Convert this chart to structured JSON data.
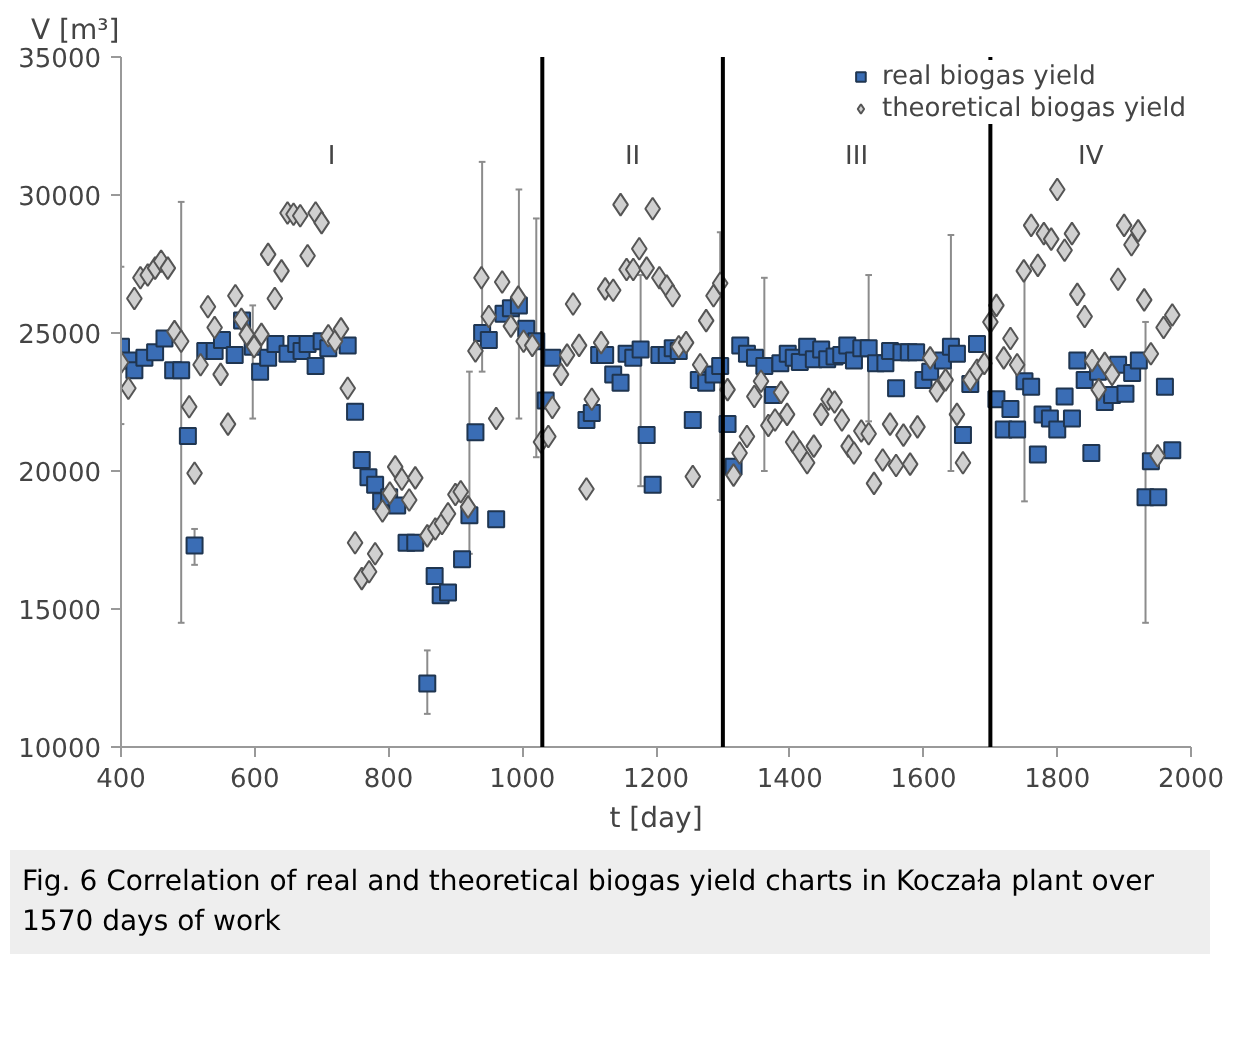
{
  "chart_data": {
    "type": "scatter",
    "xlabel": "t [day]",
    "ylabel": "V [m³]",
    "xlim": [
      400,
      2000
    ],
    "ylim": [
      10000,
      35000
    ],
    "xticks": [
      400,
      600,
      800,
      1000,
      1200,
      1400,
      1600,
      1800,
      2000
    ],
    "yticks": [
      10000,
      15000,
      20000,
      25000,
      30000,
      35000
    ],
    "grid": false,
    "legend": "top right",
    "ref_lines": [
      {
        "axis": "x",
        "value": 1030,
        "color": "#000000"
      },
      {
        "axis": "x",
        "value": 1300,
        "color": "#000000"
      },
      {
        "axis": "x",
        "value": 1700,
        "color": "#000000"
      }
    ],
    "annotations": [
      "I",
      "II",
      "III",
      "IV",
      "Fig. 6  Correlation of real and theoretical biogas yield charts in Koczała plant over 1570 days of work"
    ],
    "series": [
      {
        "name": "real biogas yield",
        "color": "#3a6db5",
        "marker": "square",
        "x": [
          400,
          411,
          420,
          435,
          451,
          465,
          478,
          490,
          500,
          510,
          526,
          540,
          551,
          570,
          581,
          597,
          608,
          620,
          631,
          649,
          662,
          670,
          679,
          691,
          700,
          710,
          739,
          750,
          760,
          770,
          780,
          789,
          801,
          813,
          827,
          840,
          858,
          869,
          878,
          889,
          910,
          921,
          930,
          940,
          950,
          961,
          972,
          983,
          995,
          1006,
          1021,
          1035,
          1045,
          1096,
          1104,
          1115,
          1124,
          1136,
          1147,
          1156,
          1166,
          1177,
          1186,
          1195,
          1205,
          1216,
          1225,
          1234,
          1255,
          1264,
          1275,
          1286,
          1296,
          1307,
          1316,
          1326,
          1336,
          1348,
          1362,
          1375,
          1386,
          1397,
          1406,
          1415,
          1426,
          1436,
          1447,
          1456,
          1467,
          1477,
          1486,
          1496,
          1507,
          1518,
          1529,
          1543,
          1550,
          1559,
          1567,
          1578,
          1589,
          1600,
          1610,
          1629,
          1641,
          1650,
          1659,
          1670,
          1680,
          1709,
          1720,
          1730,
          1740,
          1751,
          1761,
          1771,
          1778,
          1789,
          1800,
          1811,
          1822,
          1830,
          1841,
          1851,
          1861,
          1871,
          1882,
          1891,
          1902,
          1912,
          1922,
          1932,
          1940,
          1951,
          1961,
          1972
        ],
        "values": [
          24500,
          24000,
          23650,
          24100,
          24300,
          24800,
          23650,
          23650,
          21270,
          17300,
          24350,
          24350,
          24750,
          24200,
          25450,
          24500,
          23600,
          24100,
          24600,
          24250,
          24600,
          24350,
          24600,
          23800,
          24700,
          24450,
          24550,
          22150,
          20400,
          19770,
          19500,
          18900,
          19050,
          18750,
          17400,
          17400,
          12300,
          16200,
          15500,
          15600,
          16800,
          18400,
          21400,
          25000,
          24750,
          18250,
          25700,
          25900,
          26000,
          25150,
          24700,
          22550,
          24100,
          21850,
          22100,
          24200,
          24200,
          23500,
          23200,
          24250,
          24100,
          24400,
          21300,
          19500,
          24200,
          24200,
          24450,
          24350,
          21850,
          23300,
          23200,
          23500,
          23800,
          21700,
          20150,
          24550,
          24250,
          24100,
          23800,
          22750,
          23900,
          24250,
          24100,
          23950,
          24500,
          24050,
          24400,
          24050,
          24150,
          24200,
          24550,
          24000,
          24450,
          24450,
          23900,
          23900,
          24350,
          23000,
          24300,
          24300,
          24300,
          23300,
          23600,
          24000,
          24500,
          24250,
          21300,
          23150,
          24600,
          22600,
          21500,
          22250,
          21500,
          23250,
          23050,
          20600,
          22050,
          21900,
          21500,
          22700,
          21900,
          24000,
          23300,
          20650,
          23600,
          22500,
          22750,
          23850,
          22800,
          23550,
          24000,
          19050,
          20350,
          19050,
          23050,
          20750
        ],
        "errors": [
          [
            21700,
            27400
          ],
          null,
          null,
          null,
          null,
          null,
          null,
          [
            14500,
            29750
          ],
          null,
          [
            16600,
            17900
          ],
          null,
          null,
          null,
          null,
          null,
          [
            21900,
            26000
          ],
          null,
          null,
          null,
          null,
          null,
          null,
          null,
          null,
          null,
          null,
          null,
          null,
          null,
          null,
          null,
          null,
          null,
          null,
          null,
          null,
          [
            11200,
            13500
          ],
          null,
          null,
          null,
          null,
          [
            17000,
            23600
          ],
          null,
          [
            23600,
            31200
          ],
          null,
          null,
          null,
          null,
          [
            21900,
            30200
          ],
          null,
          [
            20500,
            29150
          ],
          null,
          null,
          null,
          null,
          null,
          null,
          null,
          null,
          null,
          null,
          [
            19450,
            27100
          ],
          null,
          null,
          null,
          null,
          null,
          null,
          null,
          null,
          null,
          null,
          [
            18950,
            28650
          ],
          null,
          null,
          null,
          null,
          null,
          [
            20000,
            27000
          ],
          null,
          null,
          null,
          null,
          null,
          null,
          null,
          null,
          null,
          null,
          null,
          null,
          null,
          null,
          [
            21800,
            27100
          ],
          null,
          null,
          null,
          null,
          null,
          null,
          null,
          null,
          null,
          null,
          [
            20000,
            28550
          ],
          null,
          null,
          null,
          null,
          null,
          null,
          null,
          null,
          [
            18900,
            27250
          ],
          null,
          null,
          null,
          null,
          null,
          null,
          null,
          null,
          null,
          null,
          null,
          null,
          null,
          null,
          null,
          null,
          null,
          [
            14500,
            25400
          ],
          null,
          null,
          null,
          null
        ]
      },
      {
        "name": "theoretical biogas yield",
        "color": "#d0d0d0",
        "marker": "diamond",
        "x": [
          400,
          411,
          420,
          429,
          440,
          451,
          460,
          470,
          480,
          490,
          502,
          510,
          519,
          530,
          540,
          549,
          560,
          571,
          580,
          588,
          599,
          610,
          620,
          630,
          640,
          649,
          658,
          668,
          679,
          691,
          700,
          710,
          720,
          729,
          739,
          750,
          760,
          771,
          780,
          791,
          802,
          810,
          820,
          831,
          840,
          858,
          870,
          880,
          889,
          900,
          908,
          919,
          930,
          939,
          950,
          961,
          970,
          983,
          994,
          1002,
          1015,
          1028,
          1039,
          1045,
          1058,
          1067,
          1076,
          1085,
          1096,
          1104,
          1118,
          1124,
          1136,
          1147,
          1156,
          1166,
          1175,
          1186,
          1195,
          1205,
          1216,
          1225,
          1234,
          1245,
          1255,
          1266,
          1275,
          1286,
          1296,
          1307,
          1316,
          1325,
          1336,
          1347,
          1357,
          1368,
          1378,
          1387,
          1396,
          1405,
          1415,
          1426,
          1436,
          1447,
          1458,
          1467,
          1478,
          1488,
          1496,
          1507,
          1518,
          1526,
          1539,
          1550,
          1559,
          1570,
          1580,
          1591,
          1610,
          1620,
          1633,
          1650,
          1659,
          1670,
          1680,
          1691,
          1700,
          1709,
          1720,
          1730,
          1740,
          1750,
          1761,
          1771,
          1780,
          1791,
          1800,
          1811,
          1822,
          1830,
          1841,
          1852,
          1862,
          1871,
          1882,
          1891,
          1900,
          1911,
          1921,
          1930,
          1940,
          1950,
          1959,
          1972
        ],
        "values": [
          23930,
          23000,
          26250,
          27000,
          27100,
          27350,
          27600,
          27350,
          25050,
          24700,
          22330,
          19920,
          23850,
          25950,
          25200,
          23500,
          21700,
          26350,
          25500,
          24950,
          24500,
          24950,
          27850,
          26250,
          27250,
          29350,
          29300,
          29250,
          27800,
          29350,
          29000,
          24900,
          24700,
          25150,
          23000,
          17400,
          16100,
          16350,
          17000,
          18550,
          19200,
          20150,
          19700,
          18950,
          19750,
          17650,
          17900,
          18100,
          18450,
          19150,
          19250,
          18700,
          24350,
          27000,
          25600,
          21900,
          26850,
          25250,
          26300,
          24700,
          24550,
          21050,
          21250,
          22300,
          23500,
          24200,
          26050,
          24550,
          19350,
          22600,
          24650,
          26600,
          26550,
          29650,
          27300,
          27300,
          28050,
          27350,
          29500,
          27000,
          26700,
          26350,
          24500,
          24650,
          19800,
          23850,
          25450,
          26350,
          26800,
          22950,
          19850,
          20650,
          21250,
          22700,
          23250,
          21650,
          21850,
          22850,
          22050,
          21050,
          20700,
          20300,
          20900,
          22050,
          22600,
          22500,
          21850,
          20900,
          20650,
          21450,
          21350,
          19550,
          20400,
          21700,
          20200,
          21300,
          20250,
          21600,
          24100,
          22900,
          23300,
          22050,
          20300,
          23300,
          23650,
          23900,
          25400,
          26000,
          24100,
          24800,
          23850,
          27250,
          28900,
          27450,
          28600,
          28400,
          30200,
          28000,
          28600,
          26400,
          25600,
          24000,
          22950,
          23900,
          23500,
          26950,
          28900,
          28200,
          28700,
          26200,
          24250,
          20550,
          25200,
          25650
        ]
      }
    ]
  }
}
